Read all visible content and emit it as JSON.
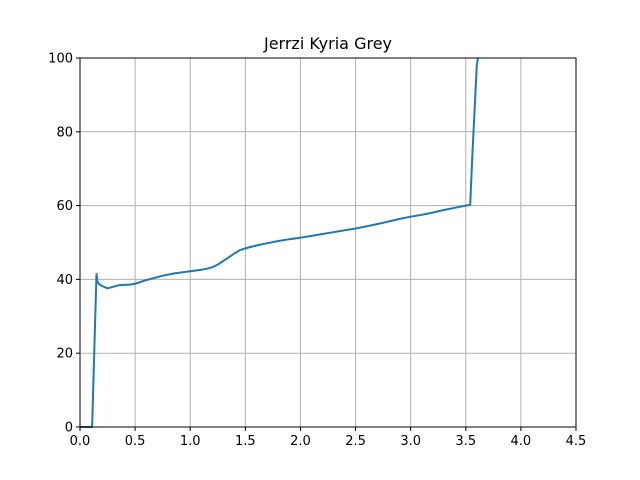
{
  "chart_data": {
    "type": "line",
    "title": "Jerrzi Kyria Grey",
    "xlabel": "",
    "ylabel": "",
    "xlim": [
      0.0,
      4.5
    ],
    "ylim": [
      0,
      100
    ],
    "xticks": [
      "0.0",
      "0.5",
      "1.0",
      "1.5",
      "2.0",
      "2.5",
      "3.0",
      "3.5",
      "4.0",
      "4.5"
    ],
    "yticks": [
      "0",
      "20",
      "40",
      "60",
      "80",
      "100"
    ],
    "grid": true,
    "colors": {
      "line": "#1f77b4",
      "grid": "#b0b0b0",
      "axes": "#000000"
    },
    "series": [
      {
        "x": [
          0.0,
          0.1,
          0.11,
          0.15,
          0.16,
          0.18,
          0.2,
          0.25,
          0.3,
          0.35,
          0.4,
          0.45,
          0.5,
          0.55,
          0.6,
          0.65,
          0.7,
          0.75,
          0.8,
          0.85,
          0.9,
          0.95,
          1.0,
          1.05,
          1.1,
          1.15,
          1.2,
          1.25,
          1.3,
          1.35,
          1.4,
          1.45,
          1.5,
          1.55,
          1.6,
          1.7,
          1.8,
          1.9,
          2.0,
          2.1,
          2.2,
          2.3,
          2.4,
          2.5,
          2.6,
          2.7,
          2.8,
          2.9,
          3.0,
          3.1,
          3.2,
          3.3,
          3.4,
          3.5,
          3.54,
          3.56,
          3.6,
          3.61
        ],
        "y": [
          0,
          0,
          0,
          41.5,
          39.2,
          38.6,
          38.2,
          37.6,
          38.0,
          38.4,
          38.5,
          38.6,
          38.8,
          39.3,
          39.8,
          40.2,
          40.6,
          41.0,
          41.3,
          41.6,
          41.8,
          42.0,
          42.2,
          42.4,
          42.6,
          42.9,
          43.3,
          44.0,
          45.0,
          46.0,
          47.0,
          47.9,
          48.4,
          48.8,
          49.2,
          49.8,
          50.4,
          50.9,
          51.3,
          51.8,
          52.3,
          52.8,
          53.3,
          53.8,
          54.4,
          55.0,
          55.7,
          56.4,
          57.0,
          57.5,
          58.1,
          58.8,
          59.4,
          60.0,
          60.2,
          74.0,
          98.0,
          100.0
        ]
      }
    ]
  }
}
